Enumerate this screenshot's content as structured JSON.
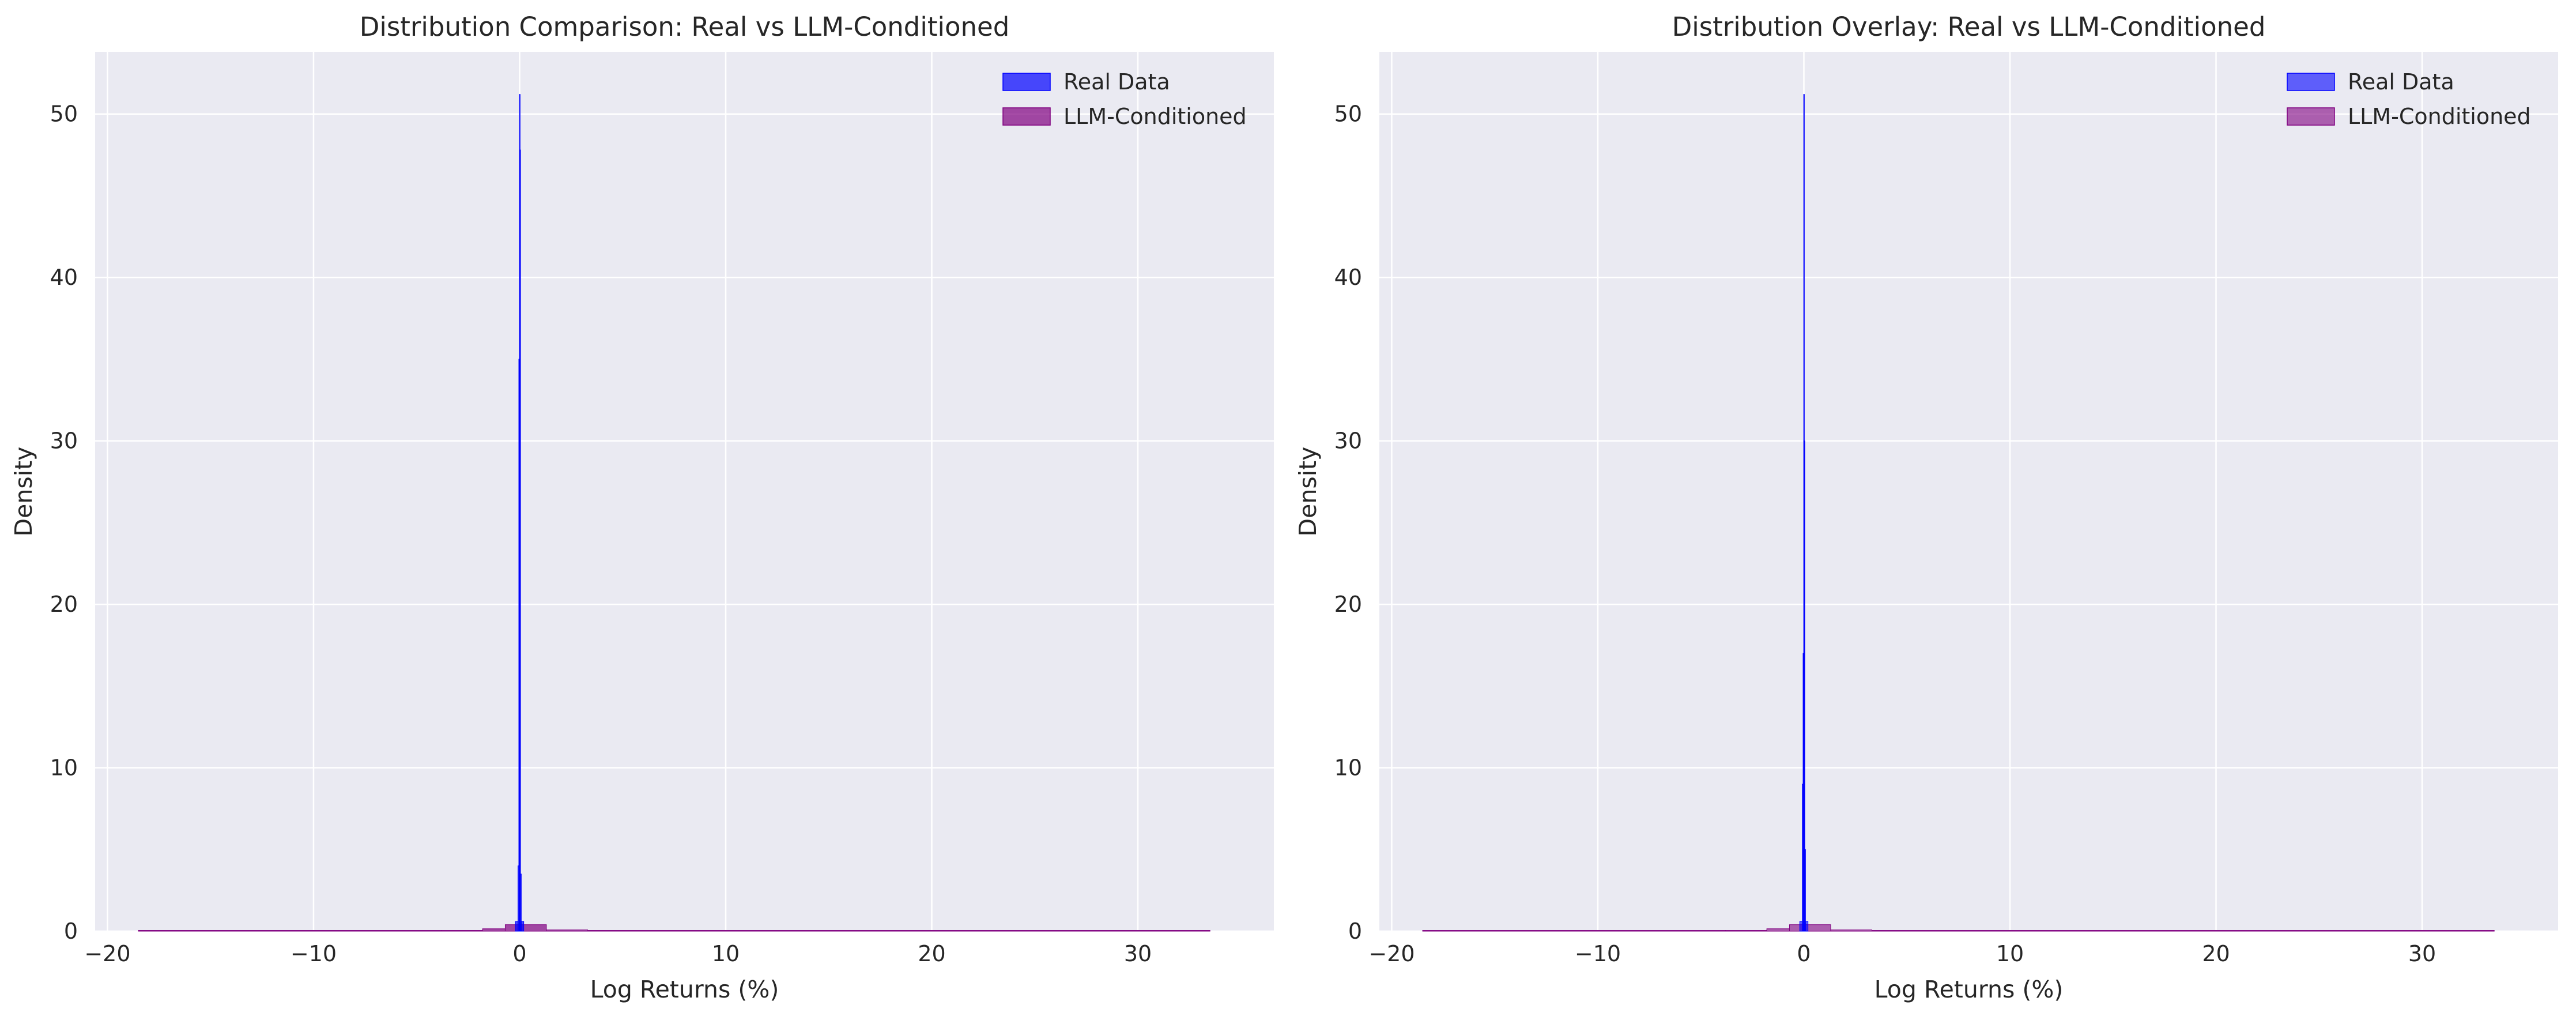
{
  "chart_data": [
    {
      "type": "histogram",
      "title": "Distribution Comparison: Real vs LLM-Conditioned",
      "xlabel": "Log Returns (%)",
      "ylabel": "Density",
      "xlim": [
        -20.6,
        36.6
      ],
      "ylim": [
        0,
        53.8
      ],
      "xticks": [
        -20,
        -10,
        0,
        10,
        20,
        30
      ],
      "xtick_labels": [
        "−20",
        "−10",
        "0",
        "10",
        "20",
        "30"
      ],
      "yticks": [
        0,
        10,
        20,
        30,
        40,
        50
      ],
      "ytick_labels": [
        "0",
        "10",
        "20",
        "30",
        "40",
        "50"
      ],
      "grid": true,
      "legend_position": "top-right",
      "series": [
        {
          "name": "Real Data",
          "color": "#0000ff",
          "alpha": 0.7,
          "bins": [
            {
              "x0": -0.2,
              "x1": -0.08,
              "y": 0.6
            },
            {
              "x0": -0.08,
              "x1": -0.04,
              "y": 4.0
            },
            {
              "x0": -0.04,
              "x1": -0.01,
              "y": 35.0
            },
            {
              "x0": -0.01,
              "x1": 0.01,
              "y": 51.2
            },
            {
              "x0": 0.01,
              "x1": 0.04,
              "y": 47.8
            },
            {
              "x0": 0.04,
              "x1": 0.08,
              "y": 3.5
            },
            {
              "x0": 0.08,
              "x1": 0.2,
              "y": 0.6
            }
          ]
        },
        {
          "name": "LLM-Conditioned",
          "color": "#800080",
          "alpha": 0.7,
          "bins": [
            {
              "x0": -18.5,
              "x1": -3.8,
              "y": 0.01
            },
            {
              "x0": -3.8,
              "x1": -1.8,
              "y": 0.05
            },
            {
              "x0": -1.8,
              "x1": -0.7,
              "y": 0.15
            },
            {
              "x0": -0.7,
              "x1": 1.3,
              "y": 0.4
            },
            {
              "x0": 1.3,
              "x1": 3.3,
              "y": 0.08
            },
            {
              "x0": 3.3,
              "x1": 33.5,
              "y": 0.01
            }
          ]
        }
      ]
    },
    {
      "type": "histogram",
      "title": "Distribution Overlay: Real vs LLM-Conditioned",
      "xlabel": "Log Returns (%)",
      "ylabel": "Density",
      "xlim": [
        -20.6,
        36.6
      ],
      "ylim": [
        0,
        53.8
      ],
      "xticks": [
        -20,
        -10,
        0,
        10,
        20,
        30
      ],
      "xtick_labels": [
        "−20",
        "−10",
        "0",
        "10",
        "20",
        "30"
      ],
      "yticks": [
        0,
        10,
        20,
        30,
        40,
        50
      ],
      "ytick_labels": [
        "0",
        "10",
        "20",
        "30",
        "40",
        "50"
      ],
      "grid": true,
      "legend_position": "top-right",
      "series": [
        {
          "name": "Real Data",
          "color": "#0000ff",
          "alpha": 0.6,
          "bins": [
            {
              "x0": -0.2,
              "x1": -0.08,
              "y": 0.6
            },
            {
              "x0": -0.08,
              "x1": -0.04,
              "y": 9.0
            },
            {
              "x0": -0.04,
              "x1": -0.01,
              "y": 17.0
            },
            {
              "x0": -0.01,
              "x1": 0.01,
              "y": 51.2
            },
            {
              "x0": 0.01,
              "x1": 0.04,
              "y": 30.0
            },
            {
              "x0": 0.04,
              "x1": 0.08,
              "y": 5.0
            },
            {
              "x0": 0.08,
              "x1": 0.2,
              "y": 0.6
            }
          ]
        },
        {
          "name": "LLM-Conditioned",
          "color": "#800080",
          "alpha": 0.6,
          "bins": [
            {
              "x0": -18.5,
              "x1": -3.8,
              "y": 0.01
            },
            {
              "x0": -3.8,
              "x1": -1.8,
              "y": 0.05
            },
            {
              "x0": -1.8,
              "x1": -0.7,
              "y": 0.15
            },
            {
              "x0": -0.7,
              "x1": 1.3,
              "y": 0.4
            },
            {
              "x0": 1.3,
              "x1": 3.3,
              "y": 0.08
            },
            {
              "x0": 3.3,
              "x1": 33.5,
              "y": 0.01
            }
          ]
        }
      ]
    }
  ],
  "style": {
    "plot_background": "#eaeaf2",
    "grid_color": "#ffffff",
    "text_color": "#262626"
  }
}
